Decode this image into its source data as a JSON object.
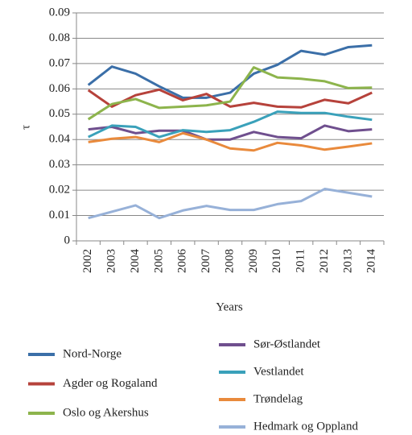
{
  "chart_data": {
    "type": "line",
    "ylabel": "τ",
    "xlabel": "Years",
    "categories": [
      "2002",
      "2003",
      "2004",
      "2005",
      "2006",
      "2007",
      "2008",
      "2009",
      "2010",
      "2011",
      "2012",
      "2013",
      "2014"
    ],
    "ylim": [
      0,
      0.09
    ],
    "yticks": [
      0,
      0.01,
      0.02,
      0.03,
      0.04,
      0.05,
      0.06,
      0.07,
      0.08,
      0.09
    ],
    "grid": true,
    "series": [
      {
        "name": "Nord-Norge",
        "color": "#3b6fa8",
        "values": [
          0.0615,
          0.0688,
          0.066,
          0.061,
          0.0565,
          0.0565,
          0.0585,
          0.066,
          0.0695,
          0.075,
          0.0735,
          0.0765,
          0.0772
        ]
      },
      {
        "name": "Agder og Rogaland",
        "color": "#b6423b",
        "values": [
          0.0595,
          0.053,
          0.0575,
          0.0597,
          0.0555,
          0.058,
          0.053,
          0.0545,
          0.053,
          0.0527,
          0.0557,
          0.0543,
          0.0585
        ]
      },
      {
        "name": "Oslo og Akershus",
        "color": "#8db44c",
        "values": [
          0.048,
          0.054,
          0.056,
          0.0525,
          0.053,
          0.0535,
          0.055,
          0.0685,
          0.0645,
          0.064,
          0.063,
          0.0603,
          0.0605
        ]
      },
      {
        "name": "Sør-Østlandet",
        "color": "#6f4f8e",
        "values": [
          0.044,
          0.045,
          0.0425,
          0.0435,
          0.0435,
          0.04,
          0.04,
          0.043,
          0.041,
          0.0405,
          0.0455,
          0.0433,
          0.044
        ]
      },
      {
        "name": "Vestlandet",
        "color": "#3aa1ba",
        "values": [
          0.041,
          0.0455,
          0.045,
          0.041,
          0.0437,
          0.043,
          0.0437,
          0.047,
          0.051,
          0.0505,
          0.0505,
          0.049,
          0.0478
        ]
      },
      {
        "name": "Trøndelag",
        "color": "#e98a3c",
        "values": [
          0.039,
          0.0403,
          0.041,
          0.039,
          0.0425,
          0.04,
          0.0365,
          0.0357,
          0.0387,
          0.0377,
          0.036,
          0.0372,
          0.0385
        ]
      },
      {
        "name": "Hedmark og Oppland",
        "color": "#97b1d8",
        "values": [
          0.009,
          0.0115,
          0.014,
          0.009,
          0.012,
          0.0138,
          0.0122,
          0.0122,
          0.0145,
          0.0157,
          0.0205,
          0.019,
          0.0175
        ]
      }
    ]
  }
}
